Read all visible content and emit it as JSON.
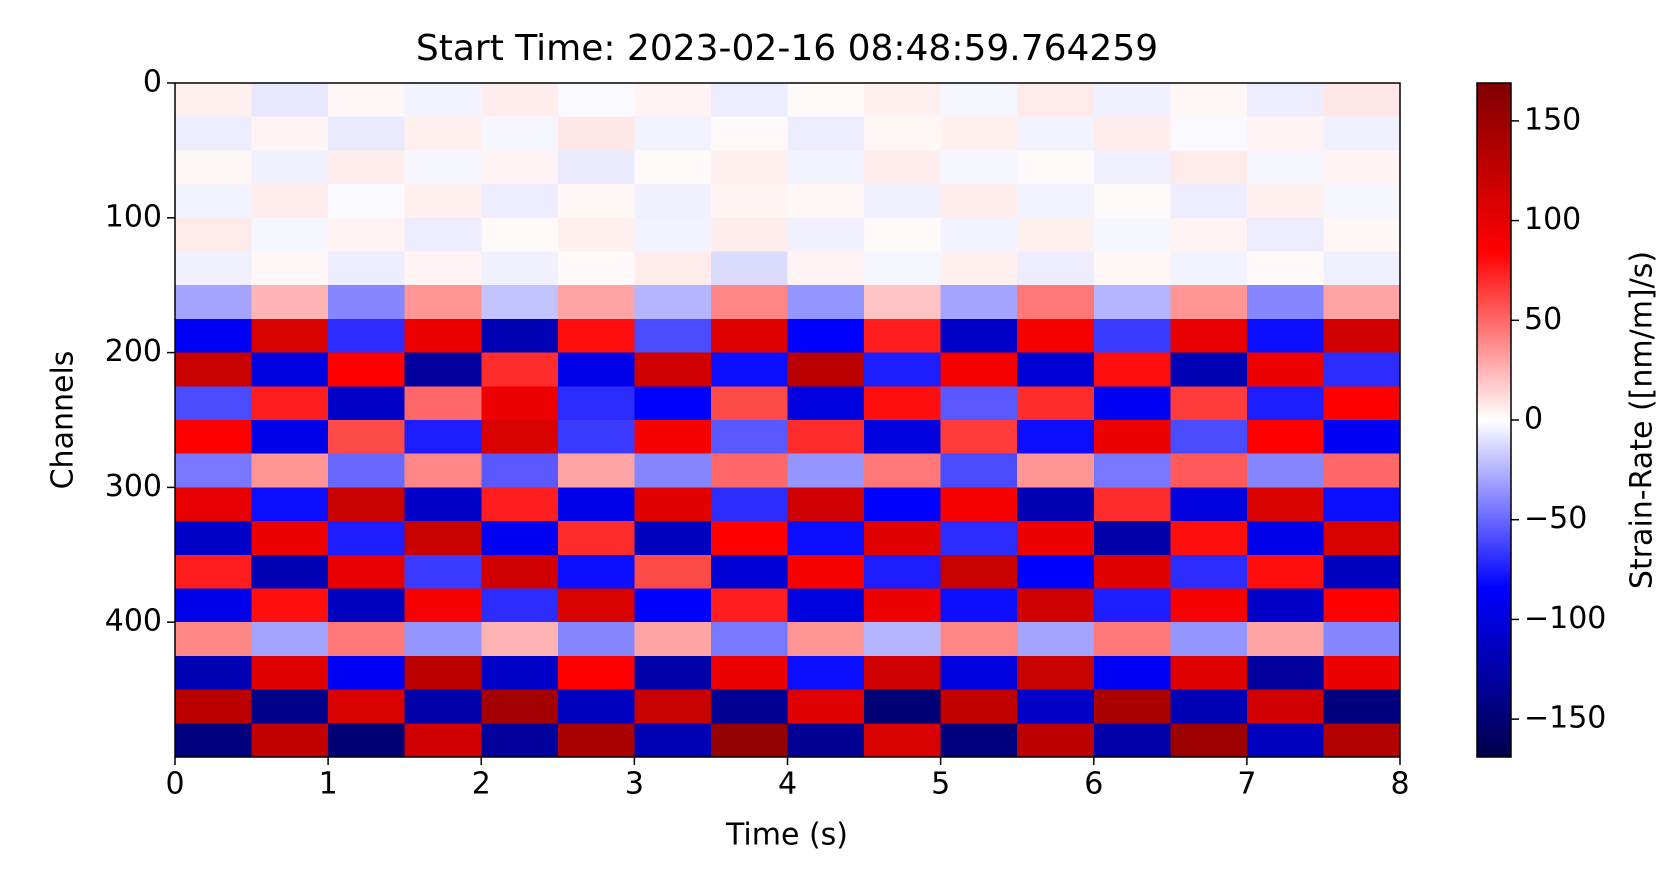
{
  "chart_data": {
    "type": "heatmap",
    "title": "Start Time: 2023-02-16 08:48:59.764259",
    "x_label": "Time (s)",
    "y_label": "Channels",
    "colorbar_label": "Strain-Rate ([nm/m]/s)",
    "cmap": "seismic",
    "xlim": [
      0,
      8
    ],
    "xticks": [
      0,
      1,
      2,
      3,
      4,
      5,
      6,
      7,
      8
    ],
    "ylim": [
      500,
      0
    ],
    "yticks": [
      0,
      100,
      200,
      300,
      400
    ],
    "clim": [
      -169,
      169
    ],
    "cticks": [
      {
        "value": -150,
        "label": "−150"
      },
      {
        "value": -100,
        "label": "−100"
      },
      {
        "value": -50,
        "label": "−50"
      },
      0,
      50,
      100,
      150
    ],
    "z": [
      [
        5,
        -8,
        3,
        -4,
        6,
        -2,
        4,
        -6,
        2,
        5,
        -3,
        7,
        -5,
        3,
        -6,
        8
      ],
      [
        -6,
        4,
        -7,
        5,
        -3,
        8,
        -4,
        2,
        -6,
        3,
        5,
        -4,
        6,
        -2,
        4,
        -5
      ],
      [
        3,
        -5,
        6,
        -3,
        4,
        -7,
        2,
        5,
        -4,
        6,
        -3,
        2,
        -5,
        7,
        -3,
        4
      ],
      [
        -4,
        6,
        -2,
        5,
        -6,
        3,
        -5,
        4,
        3,
        -5,
        6,
        -4,
        2,
        -6,
        5,
        -3
      ],
      [
        7,
        -3,
        4,
        -6,
        2,
        5,
        -4,
        6,
        -5,
        2,
        -4,
        5,
        -3,
        4,
        -6,
        3
      ],
      [
        -5,
        3,
        -6,
        4,
        -5,
        2,
        6,
        -12,
        4,
        -3,
        5,
        -6,
        3,
        -4,
        2,
        -5
      ],
      [
        -30,
        25,
        -40,
        35,
        -20,
        30,
        -25,
        40,
        -35,
        20,
        -30,
        45,
        -25,
        35,
        -40,
        30
      ],
      [
        -90,
        110,
        -70,
        95,
        -120,
        80,
        -60,
        105,
        -85,
        75,
        -110,
        90,
        -65,
        100,
        -80,
        115
      ],
      [
        120,
        -100,
        85,
        -130,
        70,
        -95,
        115,
        -80,
        130,
        -75,
        90,
        -105,
        80,
        -120,
        95,
        -70
      ],
      [
        -60,
        75,
        -110,
        50,
        95,
        -70,
        -85,
        60,
        -100,
        80,
        -55,
        70,
        -90,
        65,
        -75,
        85
      ],
      [
        85,
        -95,
        60,
        -75,
        110,
        -65,
        90,
        -55,
        70,
        -100,
        65,
        -80,
        95,
        -60,
        85,
        -90
      ],
      [
        -45,
        35,
        -50,
        40,
        -55,
        30,
        -40,
        50,
        -35,
        45,
        -60,
        35,
        -45,
        55,
        -40,
        50
      ],
      [
        100,
        -80,
        120,
        -110,
        75,
        -95,
        105,
        -70,
        115,
        -85,
        90,
        -120,
        70,
        -100,
        110,
        -80
      ],
      [
        -110,
        95,
        -75,
        120,
        -90,
        70,
        -115,
        85,
        -80,
        105,
        -70,
        95,
        -125,
        80,
        -95,
        110
      ],
      [
        75,
        -120,
        100,
        -65,
        115,
        -80,
        60,
        -105,
        90,
        -75,
        120,
        -85,
        105,
        -70,
        80,
        -115
      ],
      [
        -95,
        80,
        -115,
        90,
        -70,
        110,
        -85,
        75,
        -100,
        95,
        -80,
        115,
        -75,
        90,
        -110,
        85
      ],
      [
        40,
        -30,
        45,
        -35,
        25,
        -40,
        30,
        -45,
        35,
        -25,
        40,
        -30,
        45,
        -35,
        30,
        -40
      ],
      [
        -120,
        105,
        -90,
        130,
        -110,
        85,
        -125,
        95,
        -80,
        115,
        -100,
        120,
        -90,
        105,
        -130,
        95
      ],
      [
        130,
        -140,
        110,
        -125,
        145,
        -115,
        120,
        -135,
        105,
        -150,
        125,
        -110,
        140,
        -120,
        115,
        -145
      ],
      [
        -145,
        125,
        -150,
        115,
        -130,
        140,
        -120,
        155,
        -135,
        110,
        -145,
        130,
        -125,
        150,
        -115,
        135
      ]
    ]
  }
}
